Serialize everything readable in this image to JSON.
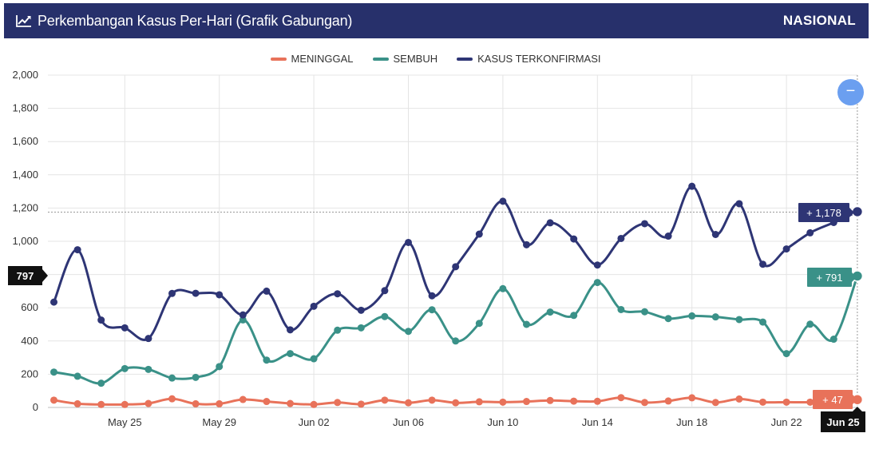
{
  "header": {
    "icon": "line-chart-icon",
    "title": "Perkembangan Kasus Per-Hari (Grafik Gabungan)",
    "region": "NASIONAL"
  },
  "zoom": {
    "icon": "zoom-out-icon",
    "label": "−"
  },
  "colors": {
    "header_bg": "#27306b",
    "meninggal": "#e8725a",
    "sembuh": "#3a9188",
    "kasus": "#2e3575"
  },
  "chart_data": {
    "type": "line",
    "x": [
      "May 22",
      "May 23",
      "May 24",
      "May 25",
      "May 26",
      "May 27",
      "May 28",
      "May 29",
      "May 30",
      "May 31",
      "Jun 01",
      "Jun 02",
      "Jun 03",
      "Jun 04",
      "Jun 05",
      "Jun 06",
      "Jun 07",
      "Jun 08",
      "Jun 09",
      "Jun 10",
      "Jun 11",
      "Jun 12",
      "Jun 13",
      "Jun 14",
      "Jun 15",
      "Jun 16",
      "Jun 17",
      "Jun 18",
      "Jun 19",
      "Jun 20",
      "Jun 21",
      "Jun 22",
      "Jun 23",
      "Jun 24",
      "Jun 25"
    ],
    "x_ticks": [
      "May 25",
      "May 29",
      "Jun 02",
      "Jun 06",
      "Jun 10",
      "Jun 14",
      "Jun 18",
      "Jun 22"
    ],
    "ylim": [
      0,
      2000
    ],
    "y_ticks": [
      "0",
      "200",
      "400",
      "600",
      "800",
      "1,000",
      "1,200",
      "1,400",
      "1,600",
      "1,800",
      "2,000"
    ],
    "legend": {
      "position": "top-center"
    },
    "grid": true,
    "series": [
      {
        "name": "MENINGGAL",
        "color": "#e8725a",
        "values": [
          44,
          22,
          18,
          18,
          24,
          52,
          22,
          22,
          48,
          36,
          24,
          18,
          30,
          20,
          44,
          28,
          44,
          28,
          34,
          32,
          36,
          42,
          38,
          37,
          59,
          30,
          39,
          58,
          30,
          51,
          32,
          32,
          32,
          46,
          47
        ]
      },
      {
        "name": "SEMBUH",
        "color": "#3a9188",
        "values": [
          213,
          188,
          146,
          234,
          229,
          177,
          181,
          246,
          527,
          285,
          324,
          293,
          465,
          479,
          547,
          458,
          588,
          400,
          506,
          715,
          500,
          574,
          554,
          752,
          589,
          576,
          535,
          551,
          545,
          529,
          514,
          324,
          501,
          411,
          791
        ]
      },
      {
        "name": "KASUS TERKONFIRMASI",
        "color": "#2e3575",
        "values": [
          634,
          949,
          526,
          479,
          415,
          686,
          687,
          678,
          557,
          700,
          467,
          609,
          684,
          585,
          703,
          993,
          672,
          847,
          1043,
          1241,
          979,
          1111,
          1014,
          857,
          1017,
          1106,
          1031,
          1331,
          1041,
          1226,
          862,
          954,
          1051,
          1113,
          1178
        ]
      }
    ],
    "annotations": {
      "start_label": "797",
      "meninggal_label": "+ 47",
      "sembuh_label": "+ 791",
      "kasus_label": "+ 1,178",
      "current_x_label": "Jun 25"
    }
  }
}
